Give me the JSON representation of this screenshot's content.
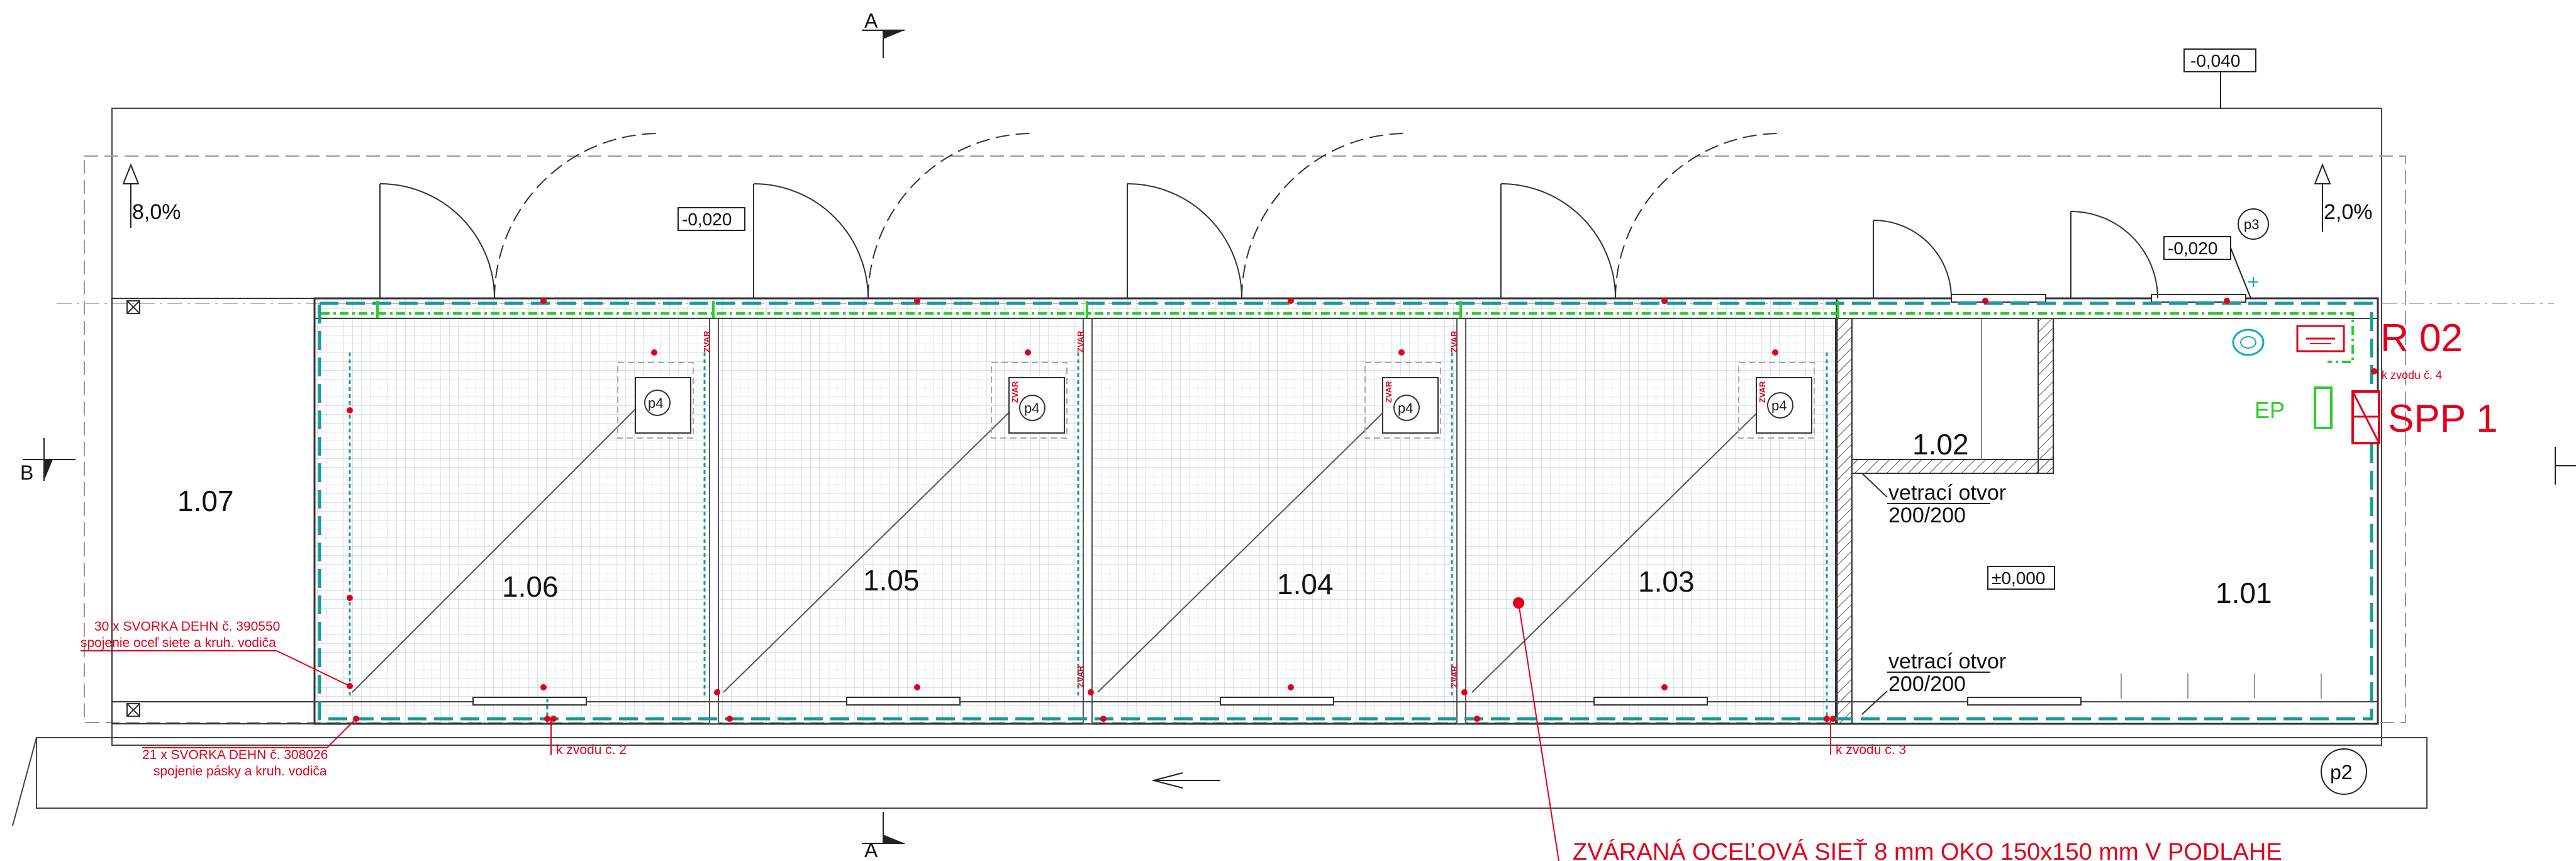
{
  "section_marks": {
    "a": "A",
    "b": "B"
  },
  "levels": {
    "top_right": "-0,040",
    "door_top": "-0,020",
    "right_door": "-0,020",
    "floor": "±0,000"
  },
  "slopes": {
    "left": "8,0%",
    "right": "2,0%"
  },
  "rooms": {
    "r107": "1.07",
    "r106": "1.06",
    "r105": "1.05",
    "r104": "1.04",
    "r103": "1.03",
    "r102": "1.02",
    "r101": "1.01"
  },
  "vents": {
    "upper_line1": "vetrací otvor",
    "upper_line2": "200/200",
    "lower_line1": "vetrací otvor",
    "lower_line2": "200/200"
  },
  "symbols": {
    "p4": "p4",
    "p3": "p3",
    "p2": "p2",
    "zvar": "ZVAR"
  },
  "equipment": {
    "r02": "R 02",
    "spp1": "SPP 1",
    "ep": "EP",
    "to_conductor4": "k zvodu č. 4"
  },
  "notes": {
    "clamps_1_line1": "30 x SVORKA DEHN č. 390550",
    "clamps_1_line2": "spojenie oceľ siete  a kruh. vodiča",
    "clamps_2_line1": "21 x SVORKA DEHN č. 308026",
    "clamps_2_line2": "spojenie pásky a kruh. vodiča",
    "to_conductor2": "k zvodu č. 2",
    "to_conductor3": "k zvodu č. 3",
    "mesh": "ZVÁRANÁ  OCEĽOVÁ SIEŤ  8 mm  OKO 150x150 mm  V  PODLAHE"
  },
  "colors": {
    "line": "#222222",
    "red": "#e0001b",
    "green": "#2ecc2e",
    "teal": "#1a9a9a",
    "grid": "#cfd8d8",
    "hatch": "#555555"
  }
}
